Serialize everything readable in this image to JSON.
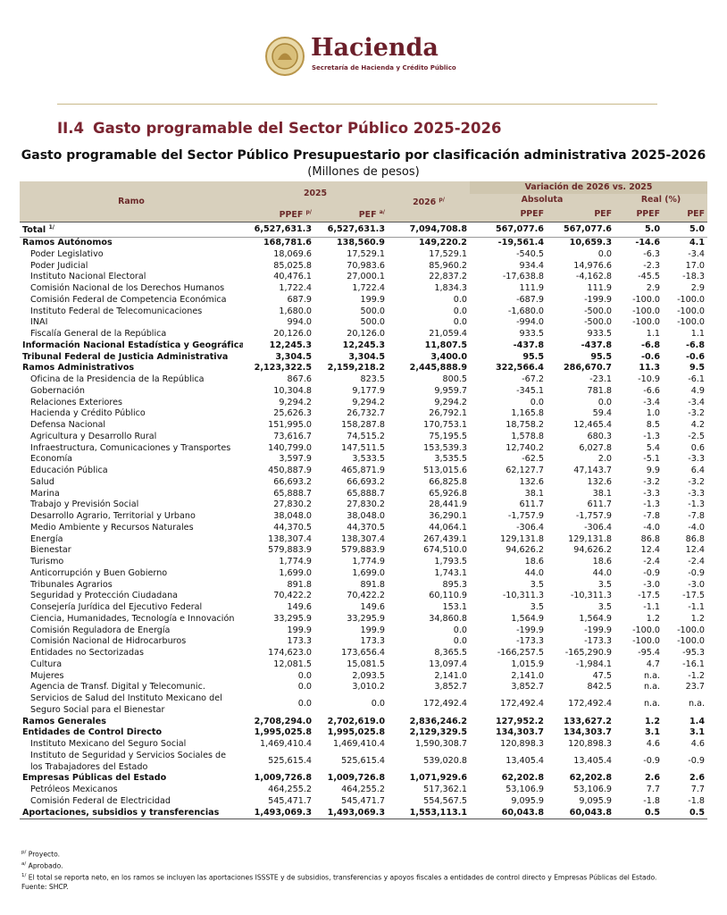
{
  "header": {
    "logo_title": "Hacienda",
    "logo_subtitle": "Secretaría de Hacienda y Crédito Público"
  },
  "section": {
    "number": "II.4",
    "title": "Gasto programable del Sector Público 2025-2026"
  },
  "table": {
    "title": "Gasto programable del Sector Público Presupuestario por clasificación administrativa 2025-2026",
    "subtitle": "(Millones de pesos)",
    "columns": {
      "ramo": "Ramo",
      "year_2025": "2025",
      "year_2026": "2026",
      "year_2026_note": "p/",
      "variation": "Variación de 2026 vs. 2025",
      "absolute": "Absoluta",
      "real": "Real (%)",
      "sub": [
        {
          "label": "PPEF",
          "note": "p/"
        },
        {
          "label": "PEF",
          "note": "a/"
        },
        {
          "label": "PPEF"
        },
        {
          "label": "PEF"
        },
        {
          "label": "PPEF"
        },
        {
          "label": "PEF"
        }
      ]
    },
    "rows": [
      {
        "label": "Total",
        "note": "1/",
        "bold": true,
        "cells": [
          "6,527,631.3",
          "6,527,631.3",
          "7,094,708.8",
          "567,077.6",
          "567,077.6",
          "5.0",
          "5.0"
        ]
      },
      {
        "label": "Ramos Autónomos",
        "bold": true,
        "cells": [
          "168,781.6",
          "138,560.9",
          "149,220.2",
          "-19,561.4",
          "10,659.3",
          "-14.6",
          "4.1"
        ]
      },
      {
        "label": "Poder Legislativo",
        "cells": [
          "18,069.6",
          "17,529.1",
          "17,529.1",
          "-540.5",
          "0.0",
          "-6.3",
          "-3.4"
        ]
      },
      {
        "label": "Poder Judicial",
        "cells": [
          "85,025.8",
          "70,983.6",
          "85,960.2",
          "934.4",
          "14,976.6",
          "-2.3",
          "17.0"
        ]
      },
      {
        "label": "Instituto Nacional Electoral",
        "cells": [
          "40,476.1",
          "27,000.1",
          "22,837.2",
          "-17,638.8",
          "-4,162.8",
          "-45.5",
          "-18.3"
        ]
      },
      {
        "label": "Comisión Nacional de los Derechos Humanos",
        "cells": [
          "1,722.4",
          "1,722.4",
          "1,834.3",
          "111.9",
          "111.9",
          "2.9",
          "2.9"
        ]
      },
      {
        "label": "Comisión Federal de Competencia Económica",
        "cells": [
          "687.9",
          "199.9",
          "0.0",
          "-687.9",
          "-199.9",
          "-100.0",
          "-100.0"
        ]
      },
      {
        "label": "Instituto Federal de Telecomunicaciones",
        "cells": [
          "1,680.0",
          "500.0",
          "0.0",
          "-1,680.0",
          "-500.0",
          "-100.0",
          "-100.0"
        ]
      },
      {
        "label": "INAI",
        "cells": [
          "994.0",
          "500.0",
          "0.0",
          "-994.0",
          "-500.0",
          "-100.0",
          "-100.0"
        ]
      },
      {
        "label": "Fiscalía General de la República",
        "cells": [
          "20,126.0",
          "20,126.0",
          "21,059.4",
          "933.5",
          "933.5",
          "1.1",
          "1.1"
        ]
      },
      {
        "label": "Información Nacional Estadística y Geográfica",
        "bold": true,
        "cells": [
          "12,245.3",
          "12,245.3",
          "11,807.5",
          "-437.8",
          "-437.8",
          "-6.8",
          "-6.8"
        ]
      },
      {
        "label": "Tribunal Federal de Justicia Administrativa",
        "bold": true,
        "cells": [
          "3,304.5",
          "3,304.5",
          "3,400.0",
          "95.5",
          "95.5",
          "-0.6",
          "-0.6"
        ]
      },
      {
        "label": "Ramos Administrativos",
        "bold": true,
        "cells": [
          "2,123,322.5",
          "2,159,218.2",
          "2,445,888.9",
          "322,566.4",
          "286,670.7",
          "11.3",
          "9.5"
        ]
      },
      {
        "label": "Oficina de la Presidencia de la República",
        "cells": [
          "867.6",
          "823.5",
          "800.5",
          "-67.2",
          "-23.1",
          "-10.9",
          "-6.1"
        ]
      },
      {
        "label": "Gobernación",
        "cells": [
          "10,304.8",
          "9,177.9",
          "9,959.7",
          "-345.1",
          "781.8",
          "-6.6",
          "4.9"
        ]
      },
      {
        "label": "Relaciones Exteriores",
        "cells": [
          "9,294.2",
          "9,294.2",
          "9,294.2",
          "0.0",
          "0.0",
          "-3.4",
          "-3.4"
        ]
      },
      {
        "label": "Hacienda y Crédito Público",
        "cells": [
          "25,626.3",
          "26,732.7",
          "26,792.1",
          "1,165.8",
          "59.4",
          "1.0",
          "-3.2"
        ]
      },
      {
        "label": "Defensa Nacional",
        "cells": [
          "151,995.0",
          "158,287.8",
          "170,753.1",
          "18,758.2",
          "12,465.4",
          "8.5",
          "4.2"
        ]
      },
      {
        "label": "Agricultura y Desarrollo Rural",
        "cells": [
          "73,616.7",
          "74,515.2",
          "75,195.5",
          "1,578.8",
          "680.3",
          "-1.3",
          "-2.5"
        ]
      },
      {
        "label": "Infraestructura, Comunicaciones y Transportes",
        "cells": [
          "140,799.0",
          "147,511.5",
          "153,539.3",
          "12,740.2",
          "6,027.8",
          "5.4",
          "0.6"
        ]
      },
      {
        "label": "Economía",
        "cells": [
          "3,597.9",
          "3,533.5",
          "3,535.5",
          "-62.5",
          "2.0",
          "-5.1",
          "-3.3"
        ]
      },
      {
        "label": "Educación Pública",
        "cells": [
          "450,887.9",
          "465,871.9",
          "513,015.6",
          "62,127.7",
          "47,143.7",
          "9.9",
          "6.4"
        ]
      },
      {
        "label": "Salud",
        "cells": [
          "66,693.2",
          "66,693.2",
          "66,825.8",
          "132.6",
          "132.6",
          "-3.2",
          "-3.2"
        ]
      },
      {
        "label": "Marina",
        "cells": [
          "65,888.7",
          "65,888.7",
          "65,926.8",
          "38.1",
          "38.1",
          "-3.3",
          "-3.3"
        ]
      },
      {
        "label": "Trabajo y Previsión Social",
        "cells": [
          "27,830.2",
          "27,830.2",
          "28,441.9",
          "611.7",
          "611.7",
          "-1.3",
          "-1.3"
        ]
      },
      {
        "label": "Desarrollo Agrario, Territorial y Urbano",
        "cells": [
          "38,048.0",
          "38,048.0",
          "36,290.1",
          "-1,757.9",
          "-1,757.9",
          "-7.8",
          "-7.8"
        ]
      },
      {
        "label": "Medio Ambiente y Recursos Naturales",
        "cells": [
          "44,370.5",
          "44,370.5",
          "44,064.1",
          "-306.4",
          "-306.4",
          "-4.0",
          "-4.0"
        ]
      },
      {
        "label": "Energía",
        "cells": [
          "138,307.4",
          "138,307.4",
          "267,439.1",
          "129,131.8",
          "129,131.8",
          "86.8",
          "86.8"
        ]
      },
      {
        "label": "Bienestar",
        "cells": [
          "579,883.9",
          "579,883.9",
          "674,510.0",
          "94,626.2",
          "94,626.2",
          "12.4",
          "12.4"
        ]
      },
      {
        "label": "Turismo",
        "cells": [
          "1,774.9",
          "1,774.9",
          "1,793.5",
          "18.6",
          "18.6",
          "-2.4",
          "-2.4"
        ]
      },
      {
        "label": "Anticorrupción y Buen Gobierno",
        "cells": [
          "1,699.0",
          "1,699.0",
          "1,743.1",
          "44.0",
          "44.0",
          "-0.9",
          "-0.9"
        ]
      },
      {
        "label": "Tribunales Agrarios",
        "cells": [
          "891.8",
          "891.8",
          "895.3",
          "3.5",
          "3.5",
          "-3.0",
          "-3.0"
        ]
      },
      {
        "label": "Seguridad y Protección Ciudadana",
        "cells": [
          "70,422.2",
          "70,422.2",
          "60,110.9",
          "-10,311.3",
          "-10,311.3",
          "-17.5",
          "-17.5"
        ]
      },
      {
        "label": "Consejería Jurídica del Ejecutivo Federal",
        "cells": [
          "149.6",
          "149.6",
          "153.1",
          "3.5",
          "3.5",
          "-1.1",
          "-1.1"
        ]
      },
      {
        "label": "Ciencia, Humanidades, Tecnología e Innovación",
        "cells": [
          "33,295.9",
          "33,295.9",
          "34,860.8",
          "1,564.9",
          "1,564.9",
          "1.2",
          "1.2"
        ]
      },
      {
        "label": "Comisión Reguladora de Energía",
        "cells": [
          "199.9",
          "199.9",
          "0.0",
          "-199.9",
          "-199.9",
          "-100.0",
          "-100.0"
        ]
      },
      {
        "label": "Comisión Nacional de Hidrocarburos",
        "cells": [
          "173.3",
          "173.3",
          "0.0",
          "-173.3",
          "-173.3",
          "-100.0",
          "-100.0"
        ]
      },
      {
        "label": "Entidades no Sectorizadas",
        "cells": [
          "174,623.0",
          "173,656.4",
          "8,365.5",
          "-166,257.5",
          "-165,290.9",
          "-95.4",
          "-95.3"
        ]
      },
      {
        "label": "Cultura",
        "cells": [
          "12,081.5",
          "15,081.5",
          "13,097.4",
          "1,015.9",
          "-1,984.1",
          "4.7",
          "-16.1"
        ]
      },
      {
        "label": "Mujeres",
        "cells": [
          "0.0",
          "2,093.5",
          "2,141.0",
          "2,141.0",
          "47.5",
          "n.a.",
          "-1.2"
        ]
      },
      {
        "label": "Agencia de Transf. Digital y Telecomunic.",
        "cells": [
          "0.0",
          "3,010.2",
          "3,852.7",
          "3,852.7",
          "842.5",
          "n.a.",
          "23.7"
        ]
      },
      {
        "label": "Servicios de Salud del Instituto Mexicano del Seguro Social para el Bienestar",
        "cells": [
          "0.0",
          "0.0",
          "172,492.4",
          "172,492.4",
          "172,492.4",
          "n.a.",
          "n.a."
        ]
      },
      {
        "label": "Ramos Generales",
        "bold": true,
        "cells": [
          "2,708,294.0",
          "2,702,619.0",
          "2,836,246.2",
          "127,952.2",
          "133,627.2",
          "1.2",
          "1.4"
        ]
      },
      {
        "label": "Entidades de Control Directo",
        "bold": true,
        "cells": [
          "1,995,025.8",
          "1,995,025.8",
          "2,129,329.5",
          "134,303.7",
          "134,303.7",
          "3.1",
          "3.1"
        ]
      },
      {
        "label": "Instituto Mexicano del Seguro Social",
        "cells": [
          "1,469,410.4",
          "1,469,410.4",
          "1,590,308.7",
          "120,898.3",
          "120,898.3",
          "4.6",
          "4.6"
        ]
      },
      {
        "label": "Instituto de Seguridad y Servicios Sociales de los Trabajadores del Estado",
        "cells": [
          "525,615.4",
          "525,615.4",
          "539,020.8",
          "13,405.4",
          "13,405.4",
          "-0.9",
          "-0.9"
        ]
      },
      {
        "label": "Empresas Públicas del Estado",
        "bold": true,
        "cells": [
          "1,009,726.8",
          "1,009,726.8",
          "1,071,929.6",
          "62,202.8",
          "62,202.8",
          "2.6",
          "2.6"
        ]
      },
      {
        "label": "Petróleos Mexicanos",
        "cells": [
          "464,255.2",
          "464,255.2",
          "517,362.1",
          "53,106.9",
          "53,106.9",
          "7.7",
          "7.7"
        ]
      },
      {
        "label": "Comisión Federal de Electricidad",
        "cells": [
          "545,471.7",
          "545,471.7",
          "554,567.5",
          "9,095.9",
          "9,095.9",
          "-1.8",
          "-1.8"
        ]
      },
      {
        "label": "Aportaciones, subsidios y transferencias",
        "bold": true,
        "cells": [
          "1,493,069.3",
          "1,493,069.3",
          "1,553,113.1",
          "60,043.8",
          "60,043.8",
          "0.5",
          "0.5"
        ]
      }
    ]
  },
  "footnotes": [
    {
      "mark": "p/",
      "text": "Proyecto."
    },
    {
      "mark": "a/",
      "text": "Aprobado."
    },
    {
      "mark": "1/",
      "text": "El total se reporta neto, en los ramos se incluyen las aportaciones ISSSTE y de subsidios, transferencias y apoyos fiscales a entidades de control directo y Empresas Públicas del Estado."
    }
  ],
  "source": "Fuente: SHCP."
}
